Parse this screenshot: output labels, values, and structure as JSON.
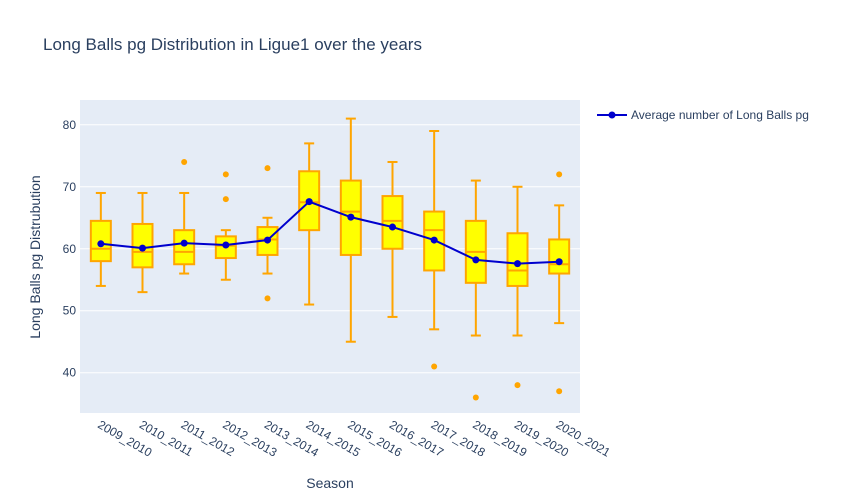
{
  "chart_data": {
    "type": "box",
    "title": "Long Balls pg Distribution in Ligue1 over the years",
    "xlabel": "Season",
    "ylabel": "Long Balls pg Distrubution",
    "ylim": [
      33.5,
      84
    ],
    "yticks": [
      40,
      50,
      60,
      70,
      80
    ],
    "grid": true,
    "legend_position": "top-right",
    "colors": {
      "box_fill": "#ffff00",
      "box_line": "#ffa500",
      "line": "#0000cd",
      "plot_bg": "#e5ecf6"
    },
    "categories": [
      "2009_2010",
      "2010_2011",
      "2011_2012",
      "2012_2013",
      "2013_2014",
      "2014_2015",
      "2015_2016",
      "2016_2017",
      "2017_2018",
      "2018_2019",
      "2019_2020",
      "2020_2021"
    ],
    "boxes": [
      {
        "min": 54,
        "q1": 58,
        "median": 60,
        "q3": 64.5,
        "max": 69,
        "outliers": []
      },
      {
        "min": 53,
        "q1": 57,
        "median": 59.5,
        "q3": 64,
        "max": 69,
        "outliers": []
      },
      {
        "min": 56,
        "q1": 57.5,
        "median": 59.5,
        "q3": 63,
        "max": 69,
        "outliers": [
          74
        ]
      },
      {
        "min": 55,
        "q1": 58.5,
        "median": 60.5,
        "q3": 62,
        "max": 63,
        "outliers": [
          72,
          68
        ]
      },
      {
        "min": 56,
        "q1": 59,
        "median": 61.5,
        "q3": 63.5,
        "max": 65,
        "outliers": [
          73,
          52
        ]
      },
      {
        "min": 51,
        "q1": 63,
        "median": 67.5,
        "q3": 72.5,
        "max": 77,
        "outliers": []
      },
      {
        "min": 45,
        "q1": 59,
        "median": 66,
        "q3": 71,
        "max": 81,
        "outliers": []
      },
      {
        "min": 49,
        "q1": 60,
        "median": 64.5,
        "q3": 68.5,
        "max": 74,
        "outliers": []
      },
      {
        "min": 47,
        "q1": 56.5,
        "median": 63,
        "q3": 66,
        "max": 79,
        "outliers": [
          41
        ]
      },
      {
        "min": 46,
        "q1": 54.5,
        "median": 59.5,
        "q3": 64.5,
        "max": 71,
        "outliers": [
          36
        ]
      },
      {
        "min": 46,
        "q1": 54,
        "median": 56.5,
        "q3": 62.5,
        "max": 70,
        "outliers": [
          38
        ]
      },
      {
        "min": 48,
        "q1": 56,
        "median": 57.5,
        "q3": 61.5,
        "max": 67,
        "outliers": [
          72,
          37
        ]
      }
    ],
    "series": [
      {
        "name": "Average number of Long Balls pg",
        "type": "line",
        "values": [
          60.8,
          60.1,
          60.9,
          60.6,
          61.4,
          67.6,
          65.1,
          63.5,
          61.4,
          58.2,
          57.6,
          57.9
        ]
      }
    ]
  }
}
